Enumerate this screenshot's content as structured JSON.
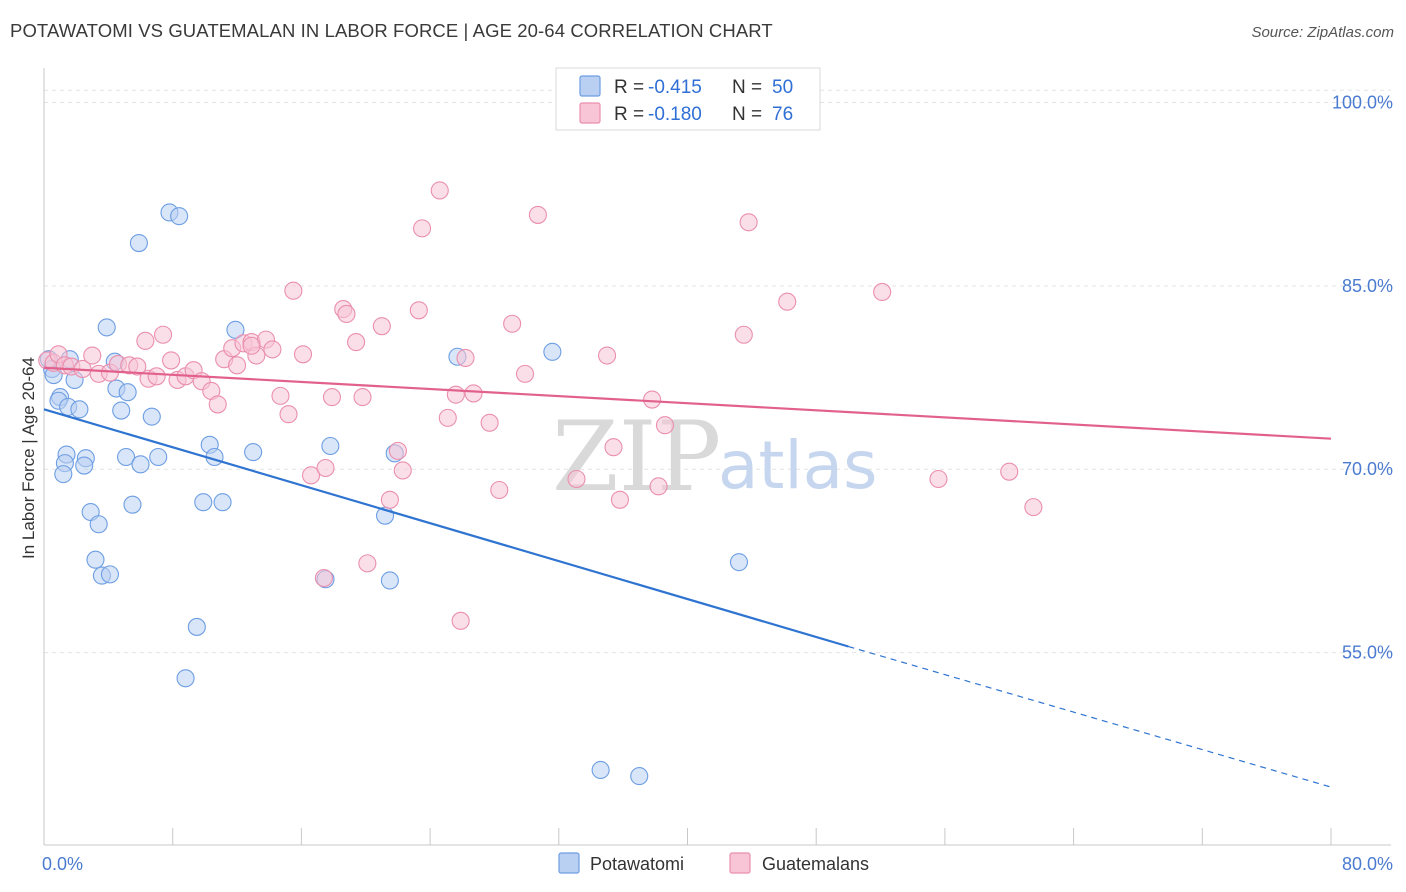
{
  "title": "POTAWATOMI VS GUATEMALAN IN LABOR FORCE | AGE 20-64 CORRELATION CHART",
  "source": "Source: ZipAtlas.com",
  "watermark": {
    "zip": "ZIP",
    "atlas": "atlas"
  },
  "legend": {
    "rows": [
      {
        "r_label": "R = ",
        "r_value": "-0.415",
        "n_label": "N = ",
        "n_value": "50"
      },
      {
        "r_label": "R = ",
        "r_value": "-0.180",
        "n_label": "N = ",
        "n_value": "76"
      }
    ]
  },
  "chart_data": {
    "type": "scatter",
    "ylabel": "In Labor Force | Age 20-64",
    "xlim": [
      0,
      80
    ],
    "ylim": [
      40,
      102
    ],
    "x_tick_labels": [
      "0.0%",
      "80.0%"
    ],
    "y_ticks": [
      {
        "value": 100,
        "label": "100.0%"
      },
      {
        "value": 85,
        "label": "85.0%"
      },
      {
        "value": 70,
        "label": "70.0%"
      },
      {
        "value": 55,
        "label": "55.0%"
      }
    ],
    "grid": true,
    "legend_position": "top-center",
    "series": [
      {
        "name": "Potawatomi",
        "color": "#6d9ee3",
        "fill": "#b9d0f2",
        "trend": {
          "x0": 0,
          "y0": 74.9,
          "x1": 50,
          "y1": 55.5,
          "dash_to_x": 80,
          "dash_to_y": 44.0,
          "color": "#2f74d0"
        },
        "points": [
          [
            0.3,
            79.0
          ],
          [
            0.5,
            78.2
          ],
          [
            0.6,
            77.7
          ],
          [
            1.0,
            75.9
          ],
          [
            0.9,
            75.6
          ],
          [
            1.5,
            75.1
          ],
          [
            2.2,
            74.9
          ],
          [
            1.9,
            77.3
          ],
          [
            4.4,
            78.8
          ],
          [
            4.5,
            76.6
          ],
          [
            5.2,
            76.3
          ],
          [
            4.8,
            74.8
          ],
          [
            6.7,
            74.3
          ],
          [
            2.6,
            70.9
          ],
          [
            1.4,
            71.2
          ],
          [
            1.3,
            70.5
          ],
          [
            1.2,
            69.6
          ],
          [
            2.5,
            70.3
          ],
          [
            5.1,
            71.0
          ],
          [
            7.1,
            71.0
          ],
          [
            6.0,
            70.4
          ],
          [
            10.3,
            72.0
          ],
          [
            10.6,
            71.0
          ],
          [
            13.0,
            71.4
          ],
          [
            2.9,
            66.5
          ],
          [
            3.4,
            65.5
          ],
          [
            5.5,
            67.1
          ],
          [
            9.9,
            67.3
          ],
          [
            11.1,
            67.3
          ],
          [
            3.2,
            62.6
          ],
          [
            3.6,
            61.3
          ],
          [
            4.1,
            61.4
          ],
          [
            9.5,
            57.1
          ],
          [
            8.8,
            52.9
          ],
          [
            5.9,
            88.5
          ],
          [
            7.8,
            91.0
          ],
          [
            8.4,
            90.7
          ],
          [
            3.9,
            81.6
          ],
          [
            11.9,
            81.4
          ],
          [
            17.8,
            71.9
          ],
          [
            21.8,
            71.3
          ],
          [
            21.2,
            66.2
          ],
          [
            21.5,
            60.9
          ],
          [
            17.5,
            61.0
          ],
          [
            25.7,
            79.2
          ],
          [
            31.6,
            79.6
          ],
          [
            43.2,
            62.4
          ],
          [
            34.6,
            45.4
          ],
          [
            37.0,
            44.9
          ],
          [
            1.6,
            79.0
          ]
        ]
      },
      {
        "name": "Guatemalans",
        "color": "#ea8fad",
        "fill": "#f8c5d6",
        "trend": {
          "x0": 0,
          "y0": 78.3,
          "x1": 80,
          "y1": 72.5,
          "color": "#e2618c"
        },
        "points": [
          [
            0.2,
            78.9
          ],
          [
            0.6,
            78.7
          ],
          [
            0.9,
            79.4
          ],
          [
            1.3,
            78.5
          ],
          [
            1.7,
            78.4
          ],
          [
            2.4,
            78.2
          ],
          [
            3.0,
            79.3
          ],
          [
            3.4,
            77.8
          ],
          [
            4.1,
            77.9
          ],
          [
            4.6,
            78.6
          ],
          [
            5.3,
            78.5
          ],
          [
            5.8,
            78.4
          ],
          [
            6.3,
            80.5
          ],
          [
            6.5,
            77.4
          ],
          [
            7.0,
            77.6
          ],
          [
            7.4,
            81.0
          ],
          [
            7.9,
            78.9
          ],
          [
            8.3,
            77.3
          ],
          [
            8.8,
            77.6
          ],
          [
            9.3,
            78.1
          ],
          [
            9.8,
            77.2
          ],
          [
            10.4,
            76.4
          ],
          [
            10.8,
            75.3
          ],
          [
            11.2,
            79.0
          ],
          [
            11.7,
            79.9
          ],
          [
            12.0,
            78.5
          ],
          [
            12.4,
            80.3
          ],
          [
            12.9,
            80.4
          ],
          [
            13.2,
            79.3
          ],
          [
            13.8,
            80.6
          ],
          [
            14.2,
            79.8
          ],
          [
            14.7,
            76.0
          ],
          [
            15.2,
            74.5
          ],
          [
            15.5,
            84.6
          ],
          [
            16.1,
            79.4
          ],
          [
            16.6,
            69.5
          ],
          [
            17.5,
            70.1
          ],
          [
            17.9,
            75.9
          ],
          [
            18.6,
            83.1
          ],
          [
            18.8,
            82.7
          ],
          [
            19.4,
            80.4
          ],
          [
            19.8,
            75.9
          ],
          [
            20.1,
            62.3
          ],
          [
            21.0,
            81.7
          ],
          [
            21.5,
            67.5
          ],
          [
            22.0,
            71.5
          ],
          [
            22.3,
            69.9
          ],
          [
            23.3,
            83.0
          ],
          [
            23.5,
            89.7
          ],
          [
            24.6,
            92.8
          ],
          [
            25.1,
            74.2
          ],
          [
            25.6,
            76.1
          ],
          [
            26.2,
            79.1
          ],
          [
            26.7,
            76.2
          ],
          [
            27.7,
            73.8
          ],
          [
            28.3,
            68.3
          ],
          [
            29.1,
            81.9
          ],
          [
            29.9,
            77.8
          ],
          [
            30.7,
            90.8
          ],
          [
            33.1,
            69.2
          ],
          [
            35.0,
            79.3
          ],
          [
            35.4,
            71.8
          ],
          [
            35.8,
            67.5
          ],
          [
            37.8,
            75.7
          ],
          [
            38.2,
            68.6
          ],
          [
            38.6,
            73.6
          ],
          [
            43.5,
            81.0
          ],
          [
            43.8,
            90.2
          ],
          [
            46.2,
            83.7
          ],
          [
            52.1,
            84.5
          ],
          [
            55.6,
            69.2
          ],
          [
            60.0,
            69.8
          ],
          [
            61.5,
            66.9
          ],
          [
            17.4,
            61.1
          ],
          [
            25.9,
            57.6
          ],
          [
            12.9,
            80.1
          ]
        ]
      }
    ]
  }
}
